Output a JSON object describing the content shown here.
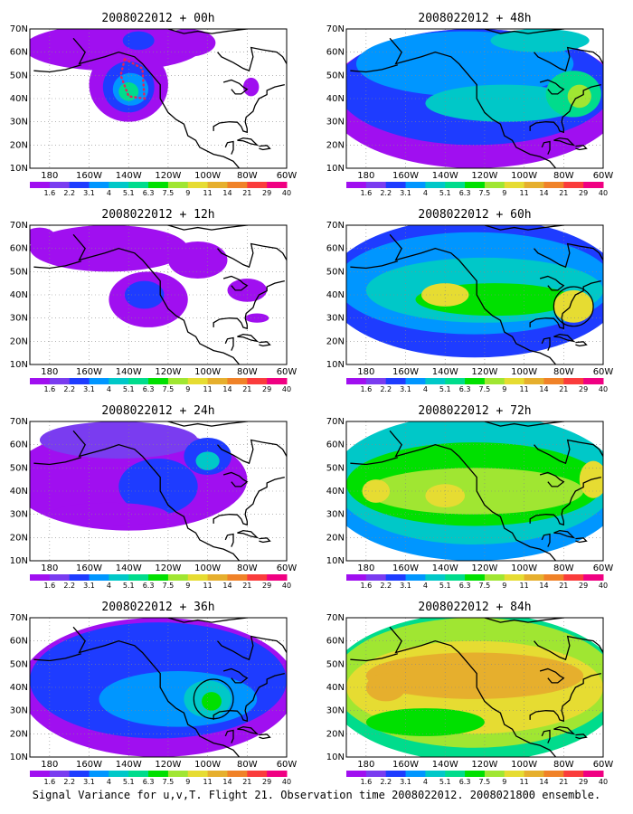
{
  "caption": "Signal Variance for u,v,T. Flight 21. Observation time 2008022012. 2008021800 ensemble.",
  "colors": {
    "palette": [
      "#a00ff0",
      "#7a3cf0",
      "#1e3cff",
      "#0096ff",
      "#00c8c8",
      "#00dc8c",
      "#00e000",
      "#a0e632",
      "#e6dc32",
      "#e6af2d",
      "#f08228",
      "#fa3c3c",
      "#f00082"
    ],
    "background": "#ffffff",
    "coast": "#000000",
    "track_marker": "#e8205a"
  },
  "chart_data": [
    {
      "type": "heatmap",
      "title": "2008022012 + 00h",
      "x_ticks": [
        "180",
        "160W",
        "140W",
        "120W",
        "100W",
        "80W",
        "60W"
      ],
      "y_ticks": [
        "10N",
        "20N",
        "30N",
        "40N",
        "50N",
        "60N",
        "70N"
      ],
      "colorbar_labels": [
        "1.6",
        "2.2",
        "3.1",
        "4",
        "5.1",
        "6.3",
        "7.5",
        "9",
        "11",
        "14",
        "21",
        "29",
        "40"
      ],
      "xlim": [
        -190,
        -60
      ],
      "ylim": [
        10,
        70
      ],
      "grid": true,
      "features": {
        "flight_track": true,
        "circle": null
      },
      "blobs": [
        {
          "lon": -148,
          "lat": 62,
          "rx": 45,
          "ry": 10,
          "level": 0
        },
        {
          "lon": -140,
          "lat": 46,
          "rx": 20,
          "ry": 16,
          "level": 0
        },
        {
          "lon": -140,
          "lat": 45,
          "rx": 13,
          "ry": 11,
          "level": 2
        },
        {
          "lon": -139,
          "lat": 44,
          "rx": 9,
          "ry": 7,
          "level": 3
        },
        {
          "lon": -140,
          "lat": 43,
          "rx": 5,
          "ry": 4,
          "level": 5
        },
        {
          "lon": -110,
          "lat": 64,
          "rx": 14,
          "ry": 6,
          "level": 0
        },
        {
          "lon": -135,
          "lat": 65,
          "rx": 8,
          "ry": 4,
          "level": 2
        },
        {
          "lon": -78,
          "lat": 45,
          "rx": 4,
          "ry": 4,
          "level": 0
        }
      ]
    },
    {
      "type": "heatmap",
      "title": "2008022012 + 48h",
      "x_ticks": [
        "180",
        "160W",
        "140W",
        "120W",
        "100W",
        "80W",
        "60W"
      ],
      "y_ticks": [
        "10N",
        "20N",
        "30N",
        "40N",
        "50N",
        "60N",
        "70N"
      ],
      "colorbar_labels": [
        "1.6",
        "2.2",
        "3.1",
        "4",
        "5.1",
        "6.3",
        "7.5",
        "9",
        "11",
        "14",
        "21",
        "29",
        "40"
      ],
      "xlim": [
        -190,
        -60
      ],
      "ylim": [
        10,
        70
      ],
      "grid": true,
      "features": {
        "flight_track": false,
        "circle": null
      },
      "blobs": [
        {
          "lon": -125,
          "lat": 40,
          "rx": 75,
          "ry": 30,
          "level": 0
        },
        {
          "lon": -125,
          "lat": 45,
          "rx": 70,
          "ry": 25,
          "level": 2
        },
        {
          "lon": -130,
          "lat": 55,
          "rx": 55,
          "ry": 14,
          "level": 3
        },
        {
          "lon": -110,
          "lat": 38,
          "rx": 40,
          "ry": 8,
          "level": 4
        },
        {
          "lon": -75,
          "lat": 42,
          "rx": 14,
          "ry": 10,
          "level": 5
        },
        {
          "lon": -72,
          "lat": 41,
          "rx": 6,
          "ry": 5,
          "level": 7
        },
        {
          "lon": -92,
          "lat": 65,
          "rx": 25,
          "ry": 5,
          "level": 4
        }
      ]
    },
    {
      "type": "heatmap",
      "title": "2008022012 + 12h",
      "x_ticks": [
        "180",
        "160W",
        "140W",
        "120W",
        "100W",
        "80W",
        "60W"
      ],
      "y_ticks": [
        "10N",
        "20N",
        "30N",
        "40N",
        "50N",
        "60N",
        "70N"
      ],
      "colorbar_labels": [
        "1.6",
        "2.2",
        "3.1",
        "4",
        "5.1",
        "6.3",
        "7.5",
        "9",
        "11",
        "14",
        "21",
        "29",
        "40"
      ],
      "xlim": [
        -190,
        -60
      ],
      "ylim": [
        10,
        70
      ],
      "grid": true,
      "features": {
        "flight_track": false,
        "circle": null
      },
      "blobs": [
        {
          "lon": -150,
          "lat": 60,
          "rx": 40,
          "ry": 10,
          "level": 0
        },
        {
          "lon": -130,
          "lat": 38,
          "rx": 20,
          "ry": 12,
          "level": 0
        },
        {
          "lon": -132,
          "lat": 40,
          "rx": 10,
          "ry": 6,
          "level": 2
        },
        {
          "lon": -105,
          "lat": 55,
          "rx": 15,
          "ry": 8,
          "level": 0
        },
        {
          "lon": -80,
          "lat": 42,
          "rx": 10,
          "ry": 5,
          "level": 0
        },
        {
          "lon": -75,
          "lat": 30,
          "rx": 6,
          "ry": 2,
          "level": 0
        },
        {
          "lon": -185,
          "lat": 65,
          "rx": 8,
          "ry": 4,
          "level": 0
        }
      ]
    },
    {
      "type": "heatmap",
      "title": "2008022012 + 60h",
      "x_ticks": [
        "180",
        "160W",
        "140W",
        "120W",
        "100W",
        "80W",
        "60W"
      ],
      "y_ticks": [
        "10N",
        "20N",
        "30N",
        "40N",
        "50N",
        "60N",
        "70N"
      ],
      "colorbar_labels": [
        "1.6",
        "2.2",
        "3.1",
        "4",
        "5.1",
        "6.3",
        "7.5",
        "9",
        "11",
        "14",
        "21",
        "29",
        "40"
      ],
      "xlim": [
        -190,
        -60
      ],
      "ylim": [
        10,
        70
      ],
      "grid": true,
      "features": {
        "flight_track": false,
        "circle": {
          "lon": -75,
          "lat": 35,
          "r": 10
        }
      },
      "blobs": [
        {
          "lon": -125,
          "lat": 43,
          "rx": 75,
          "ry": 30,
          "level": 2
        },
        {
          "lon": -125,
          "lat": 45,
          "rx": 70,
          "ry": 22,
          "level": 3
        },
        {
          "lon": -120,
          "lat": 42,
          "rx": 60,
          "ry": 14,
          "level": 4
        },
        {
          "lon": -115,
          "lat": 38,
          "rx": 40,
          "ry": 7,
          "level": 6
        },
        {
          "lon": -75,
          "lat": 35,
          "rx": 10,
          "ry": 7,
          "level": 8
        },
        {
          "lon": -140,
          "lat": 40,
          "rx": 12,
          "ry": 5,
          "level": 8
        }
      ]
    },
    {
      "type": "heatmap",
      "title": "2008022012 + 24h",
      "x_ticks": [
        "180",
        "160W",
        "140W",
        "120W",
        "100W",
        "80W",
        "60W"
      ],
      "y_ticks": [
        "10N",
        "20N",
        "30N",
        "40N",
        "50N",
        "60N",
        "70N"
      ],
      "colorbar_labels": [
        "1.6",
        "2.2",
        "3.1",
        "4",
        "5.1",
        "6.3",
        "7.5",
        "9",
        "11",
        "14",
        "21",
        "29",
        "40"
      ],
      "xlim": [
        -190,
        -60
      ],
      "ylim": [
        10,
        70
      ],
      "grid": true,
      "features": {
        "flight_track": false,
        "circle": null
      },
      "blobs": [
        {
          "lon": -140,
          "lat": 45,
          "rx": 60,
          "ry": 22,
          "level": 0
        },
        {
          "lon": -145,
          "lat": 62,
          "rx": 40,
          "ry": 8,
          "level": 1
        },
        {
          "lon": -125,
          "lat": 42,
          "rx": 20,
          "ry": 12,
          "level": 2
        },
        {
          "lon": -100,
          "lat": 55,
          "rx": 12,
          "ry": 8,
          "level": 2
        },
        {
          "lon": -100,
          "lat": 53,
          "rx": 6,
          "ry": 4,
          "level": 4
        },
        {
          "lon": -150,
          "lat": 30,
          "rx": 30,
          "ry": 5,
          "level": 0
        }
      ]
    },
    {
      "type": "heatmap",
      "title": "2008022012 + 72h",
      "x_ticks": [
        "180",
        "160W",
        "140W",
        "120W",
        "100W",
        "80W",
        "60W"
      ],
      "y_ticks": [
        "10N",
        "20N",
        "30N",
        "40N",
        "50N",
        "60N",
        "70N"
      ],
      "colorbar_labels": [
        "1.6",
        "2.2",
        "3.1",
        "4",
        "5.1",
        "6.3",
        "7.5",
        "9",
        "11",
        "14",
        "21",
        "29",
        "40"
      ],
      "xlim": [
        -190,
        -60
      ],
      "ylim": [
        10,
        70
      ],
      "grid": true,
      "features": {
        "flight_track": false,
        "circle": null
      },
      "blobs": [
        {
          "lon": -125,
          "lat": 40,
          "rx": 75,
          "ry": 30,
          "level": 3
        },
        {
          "lon": -125,
          "lat": 45,
          "rx": 72,
          "ry": 28,
          "level": 4
        },
        {
          "lon": -125,
          "lat": 43,
          "rx": 65,
          "ry": 18,
          "level": 6
        },
        {
          "lon": -125,
          "lat": 40,
          "rx": 55,
          "ry": 10,
          "level": 7
        },
        {
          "lon": -175,
          "lat": 40,
          "rx": 7,
          "ry": 5,
          "level": 8
        },
        {
          "lon": -140,
          "lat": 38,
          "rx": 10,
          "ry": 5,
          "level": 8
        },
        {
          "lon": -65,
          "lat": 45,
          "rx": 7,
          "ry": 8,
          "level": 8
        }
      ]
    },
    {
      "type": "heatmap",
      "title": "2008022012 + 36h",
      "x_ticks": [
        "180",
        "160W",
        "140W",
        "120W",
        "100W",
        "80W",
        "60W"
      ],
      "y_ticks": [
        "10N",
        "20N",
        "30N",
        "40N",
        "50N",
        "60N",
        "70N"
      ],
      "colorbar_labels": [
        "1.6",
        "2.2",
        "3.1",
        "4",
        "5.1",
        "6.3",
        "7.5",
        "9",
        "11",
        "14",
        "21",
        "29",
        "40"
      ],
      "xlim": [
        -190,
        -60
      ],
      "ylim": [
        10,
        70
      ],
      "grid": true,
      "features": {
        "flight_track": false,
        "circle": {
          "lon": -97,
          "lat": 35,
          "r": 10
        }
      },
      "blobs": [
        {
          "lon": -125,
          "lat": 40,
          "rx": 70,
          "ry": 30,
          "level": 0
        },
        {
          "lon": -125,
          "lat": 43,
          "rx": 65,
          "ry": 25,
          "level": 2
        },
        {
          "lon": -115,
          "lat": 35,
          "rx": 40,
          "ry": 12,
          "level": 3
        },
        {
          "lon": -100,
          "lat": 35,
          "rx": 12,
          "ry": 8,
          "level": 4
        },
        {
          "lon": -98,
          "lat": 34,
          "rx": 5,
          "ry": 4,
          "level": 6
        }
      ]
    },
    {
      "type": "heatmap",
      "title": "2008022012 + 84h",
      "x_ticks": [
        "180",
        "160W",
        "140W",
        "120W",
        "100W",
        "80W",
        "60W"
      ],
      "y_ticks": [
        "10N",
        "20N",
        "30N",
        "40N",
        "50N",
        "60N",
        "70N"
      ],
      "colorbar_labels": [
        "1.6",
        "2.2",
        "3.1",
        "4",
        "5.1",
        "6.3",
        "7.5",
        "9",
        "11",
        "14",
        "21",
        "29",
        "40"
      ],
      "xlim": [
        -190,
        -60
      ],
      "ylim": [
        10,
        70
      ],
      "grid": true,
      "features": {
        "flight_track": false,
        "circle": null
      },
      "blobs": [
        {
          "lon": -125,
          "lat": 40,
          "rx": 75,
          "ry": 32,
          "level": 5
        },
        {
          "lon": -125,
          "lat": 42,
          "rx": 72,
          "ry": 28,
          "level": 7
        },
        {
          "lon": -125,
          "lat": 40,
          "rx": 65,
          "ry": 20,
          "level": 8
        },
        {
          "lon": -125,
          "lat": 45,
          "rx": 55,
          "ry": 10,
          "level": 9
        },
        {
          "lon": -170,
          "lat": 40,
          "rx": 10,
          "ry": 6,
          "level": 9
        },
        {
          "lon": -150,
          "lat": 25,
          "rx": 30,
          "ry": 6,
          "level": 6
        }
      ]
    }
  ]
}
